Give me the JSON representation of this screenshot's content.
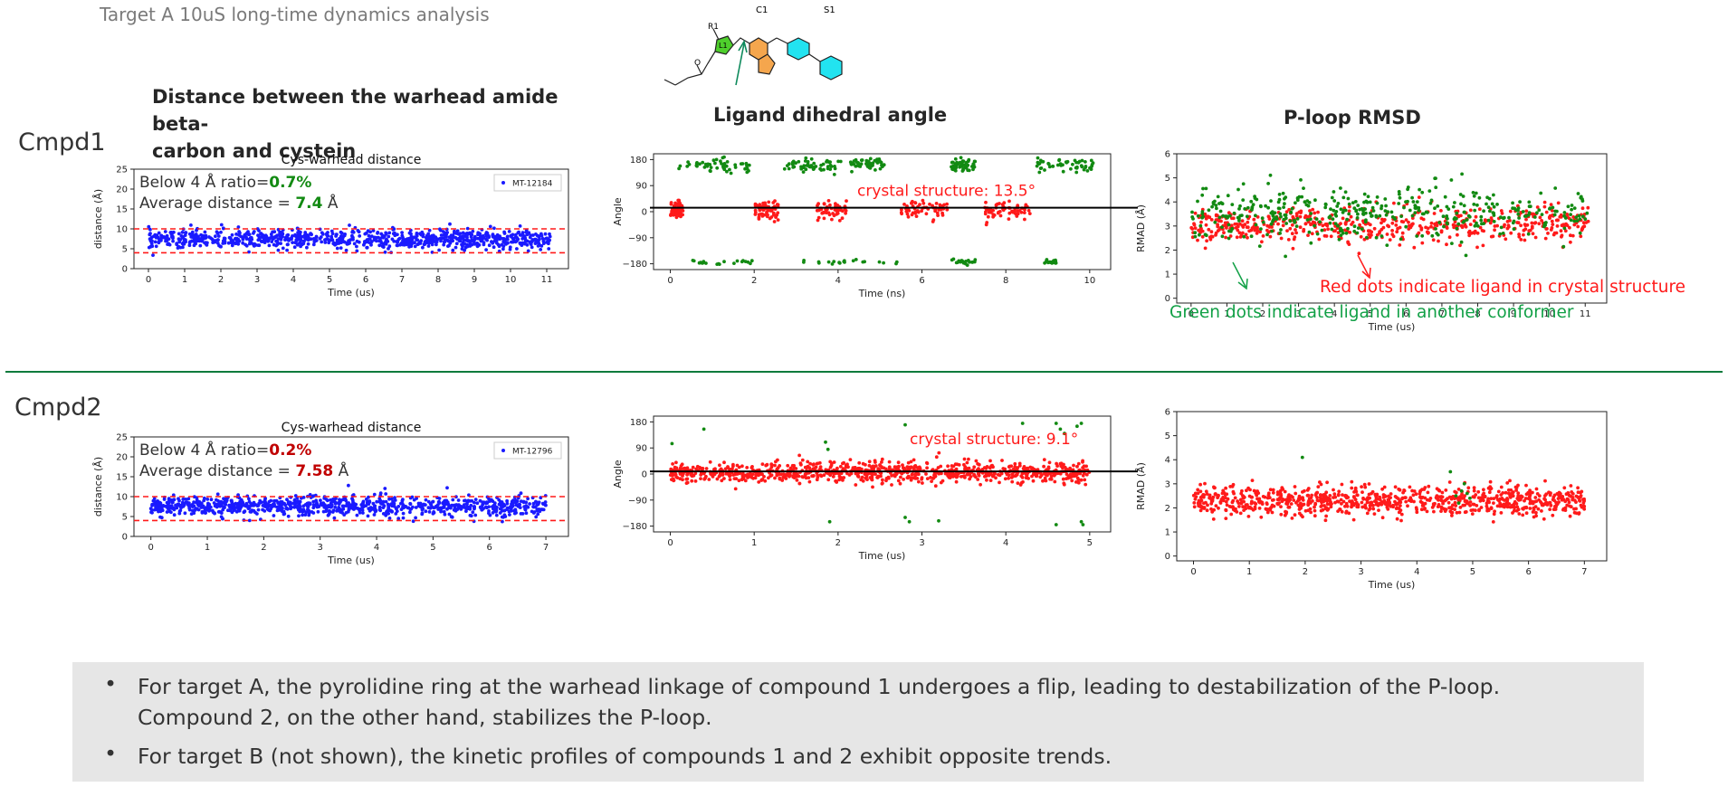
{
  "slide": {
    "title": "Target A 10uS long-time dynamics analysis",
    "rows": [
      "Cmpd1",
      "Cmpd2"
    ],
    "section_titles": {
      "distance": "Distance between the warhead amide beta-\ncarbon and cystein",
      "dihedral": "Ligand dihedral angle",
      "ploop": "P-loop RMSD"
    },
    "structure_labels": {
      "r1": "R1",
      "l1": "L1",
      "c1": "C1",
      "s1": "S1",
      "o": "O"
    },
    "bullets": [
      "For target A, the pyrolidine ring at the warhead linkage of compound 1 undergoes a flip, leading to destabilization of the P-loop. Compound 2, on the other hand, stabilizes the P-loop.",
      "For target B (not shown), the kinetic profiles of compounds 1 and 2 exhibit opposite trends."
    ]
  },
  "colors": {
    "blue": "#1a1aff",
    "red": "#ff1a1a",
    "green": "#128a12",
    "green_text": "#11a046",
    "dark_red": "#c00000",
    "divider": "#0e7a3c"
  },
  "chart_data": [
    {
      "id": "c1d",
      "type": "scatter",
      "title": "Cys-warhead distance",
      "xlabel": "Time (us)",
      "ylabel": "distance (Å)",
      "xlim": [
        -0.4,
        11.6
      ],
      "ylim": [
        0,
        25
      ],
      "xticks": [
        0,
        1,
        2,
        3,
        4,
        5,
        6,
        7,
        8,
        9,
        10,
        11
      ],
      "yticks": [
        0,
        5,
        10,
        15,
        20,
        25
      ],
      "legend": "MT-12184",
      "legend_position": "top-right",
      "hlines": [
        4,
        10
      ],
      "annotation": {
        "line1_prefix": "Below 4 Å ratio=",
        "line1_value": "0.7%",
        "line2_prefix": "Average distance = ",
        "line2_value": "7.4",
        "line2_unit": " Å",
        "value_color": "green"
      },
      "series": [
        {
          "name": "MT-12184",
          "color": "blue",
          "n": 900,
          "x_range": [
            0,
            11.1
          ],
          "y_mean": 7.4,
          "y_sd": 1.15,
          "outliers_y": [
            4.2,
            10.9,
            11.2
          ]
        }
      ]
    },
    {
      "id": "c1a",
      "type": "scatter",
      "xlabel": "Time (ns)",
      "ylabel": "Angle",
      "xlim": [
        -0.4,
        10.5
      ],
      "ylim": [
        -200,
        200
      ],
      "xticks": [
        0,
        2,
        4,
        6,
        8,
        10
      ],
      "yticks": [
        -180,
        -90,
        0,
        90,
        180
      ],
      "reference_line": 13.5,
      "annotation": "crystal structure: 13.5°",
      "series": [
        {
          "name": "",
          "color": "green",
          "x_ranges": [
            [
              0.2,
              1.9
            ],
            [
              2.7,
              4.1
            ],
            [
              4.3,
              5.1
            ],
            [
              6.7,
              7.3
            ],
            [
              8.6,
              10.1
            ]
          ],
          "y_mean": 160,
          "y_sd": 12,
          "n": 260
        },
        {
          "name": "",
          "color": "red",
          "x_ranges": [
            [
              0,
              0.3
            ],
            [
              2.0,
              2.6
            ],
            [
              3.5,
              4.2
            ],
            [
              5.5,
              6.6
            ],
            [
              7.5,
              8.6
            ]
          ],
          "y_mean": 5,
          "y_sd": 15,
          "n": 300
        },
        {
          "name": "",
          "color": "green",
          "x_ranges": [
            [
              0.4,
              2.0
            ],
            [
              3.1,
              5.5
            ],
            [
              6.7,
              7.3
            ],
            [
              8.9,
              9.2
            ]
          ],
          "y_mean": -173,
          "y_sd": 4,
          "n": 80
        }
      ]
    },
    {
      "id": "c1r",
      "type": "scatter",
      "xlabel": "Time (us)",
      "ylabel": "RMAD (Å)",
      "xlim": [
        -0.4,
        11.6
      ],
      "ylim": [
        -0.2,
        6
      ],
      "xticks": [
        0,
        1,
        2,
        3,
        4,
        5,
        6,
        7,
        8,
        9,
        10,
        11
      ],
      "yticks": [
        0,
        1,
        2,
        3,
        4,
        5,
        6
      ],
      "annotations": [
        "Red dots indicate ligand in crystal structure",
        "Green dots indicate ligand in another conformer"
      ],
      "series": [
        {
          "name": "",
          "color": "red",
          "n": 560,
          "x_range": [
            0,
            11.1
          ],
          "y_mean": 3.0,
          "y_sd": 0.38
        },
        {
          "name": "",
          "color": "green",
          "n": 420,
          "x_range": [
            0,
            11.1
          ],
          "y_mean": 3.6,
          "y_sd": 0.55
        }
      ]
    },
    {
      "id": "c2d",
      "type": "scatter",
      "title": "Cys-warhead distance",
      "xlabel": "Time (us)",
      "ylabel": "distance (Å)",
      "xlim": [
        -0.3,
        7.4
      ],
      "ylim": [
        0,
        25
      ],
      "xticks": [
        0,
        1,
        2,
        3,
        4,
        5,
        6,
        7
      ],
      "yticks": [
        0,
        5,
        10,
        15,
        20,
        25
      ],
      "legend": "MT-12796",
      "legend_position": "top-right",
      "hlines": [
        4,
        10
      ],
      "annotation": {
        "line1_prefix": "Below 4 Å ratio=",
        "line1_value": "0.2%",
        "line2_prefix": "Average distance = ",
        "line2_value": "7.58",
        "line2_unit": " Å",
        "value_color": "dark_red"
      },
      "series": [
        {
          "name": "MT-12796",
          "color": "blue",
          "n": 900,
          "x_range": [
            0,
            7.0
          ],
          "y_mean": 7.58,
          "y_sd": 1.25,
          "outliers_y": [
            4.0,
            12.8,
            12.2
          ]
        }
      ]
    },
    {
      "id": "c2a",
      "type": "scatter",
      "xlabel": "Time (us)",
      "ylabel": "Angle",
      "xlim": [
        -0.2,
        5.25
      ],
      "ylim": [
        -200,
        200
      ],
      "xticks": [
        0,
        1,
        2,
        3,
        4,
        5
      ],
      "yticks": [
        -180,
        -90,
        0,
        90,
        180
      ],
      "reference_line": 9.1,
      "annotation": "crystal structure: 9.1°",
      "series": [
        {
          "name": "",
          "color": "red",
          "n": 900,
          "x_range": [
            0,
            5.0
          ],
          "y_mean": 5,
          "y_sd": 18
        },
        {
          "name": "",
          "color": "green",
          "points": [
            [
              0.02,
              105
            ],
            [
              0.4,
              155
            ],
            [
              1.85,
              110
            ],
            [
              1.88,
              85
            ],
            [
              2.8,
              170
            ],
            [
              4.6,
              175
            ],
            [
              4.65,
              155
            ],
            [
              4.7,
              140
            ],
            [
              4.85,
              165
            ],
            [
              4.9,
              175
            ],
            [
              1.9,
              -165
            ],
            [
              2.8,
              -150
            ],
            [
              2.85,
              -165
            ],
            [
              3.2,
              -162
            ],
            [
              4.6,
              -175
            ],
            [
              4.9,
              -165
            ],
            [
              4.92,
              -175
            ],
            [
              4.2,
              175
            ]
          ]
        }
      ]
    },
    {
      "id": "c2r",
      "type": "scatter",
      "xlabel": "Time (us)",
      "ylabel": "RMAD (Å)",
      "xlim": [
        -0.3,
        7.4
      ],
      "ylim": [
        -0.2,
        6
      ],
      "xticks": [
        0,
        1,
        2,
        3,
        4,
        5,
        6,
        7
      ],
      "yticks": [
        0,
        1,
        2,
        3,
        4,
        5,
        6
      ],
      "series": [
        {
          "name": "",
          "color": "red",
          "n": 900,
          "x_range": [
            0,
            7.0
          ],
          "y_mean": 2.3,
          "y_sd": 0.3
        },
        {
          "name": "",
          "color": "green",
          "points": [
            [
              1.95,
              4.1
            ],
            [
              4.6,
              3.5
            ],
            [
              4.7,
              2.5
            ],
            [
              4.75,
              2.2
            ],
            [
              4.8,
              2.7
            ],
            [
              4.85,
              3.0
            ],
            [
              4.9,
              2.6
            ],
            [
              4.95,
              2.4
            ]
          ]
        }
      ]
    }
  ]
}
